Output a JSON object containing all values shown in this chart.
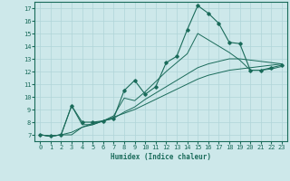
{
  "xlabel": "Humidex (Indice chaleur)",
  "bg_color": "#cde8ea",
  "grid_color": "#b0d4d8",
  "line_color": "#1a6b5a",
  "xlim": [
    -0.5,
    23.5
  ],
  "ylim": [
    6.5,
    17.5
  ],
  "xticks": [
    0,
    1,
    2,
    3,
    4,
    5,
    6,
    7,
    8,
    9,
    10,
    11,
    12,
    13,
    14,
    15,
    16,
    17,
    18,
    19,
    20,
    21,
    22,
    23
  ],
  "yticks": [
    7,
    8,
    9,
    10,
    11,
    12,
    13,
    14,
    15,
    16,
    17
  ],
  "line1_x": [
    0,
    1,
    2,
    3,
    4,
    5,
    6,
    7,
    8,
    9,
    10,
    11,
    12,
    13,
    14,
    15,
    16,
    17,
    18,
    19,
    20,
    21,
    22,
    23
  ],
  "line1_y": [
    7.0,
    6.9,
    7.0,
    9.3,
    8.0,
    8.0,
    8.1,
    8.3,
    10.5,
    11.3,
    10.2,
    10.8,
    12.7,
    13.2,
    15.3,
    17.2,
    16.6,
    15.8,
    14.3,
    14.2,
    12.1,
    12.1,
    12.3,
    12.5
  ],
  "line2_x": [
    0,
    1,
    2,
    3,
    4,
    5,
    6,
    7,
    8,
    9,
    10,
    11,
    12,
    13,
    14,
    15,
    16,
    17,
    18,
    19,
    20,
    21,
    22,
    23
  ],
  "line2_y": [
    7.0,
    6.9,
    7.0,
    7.2,
    7.6,
    7.8,
    8.1,
    8.4,
    8.7,
    9.0,
    9.4,
    9.8,
    10.2,
    10.6,
    11.0,
    11.4,
    11.7,
    11.9,
    12.1,
    12.2,
    12.3,
    12.4,
    12.5,
    12.6
  ],
  "line3_x": [
    0,
    1,
    2,
    3,
    4,
    5,
    6,
    7,
    8,
    9,
    10,
    11,
    12,
    13,
    14,
    15,
    16,
    17,
    18,
    19,
    20,
    21,
    22,
    23
  ],
  "line3_y": [
    7.0,
    6.9,
    7.0,
    7.0,
    7.6,
    7.9,
    8.1,
    8.3,
    8.8,
    9.2,
    9.8,
    10.3,
    10.8,
    11.3,
    11.8,
    12.3,
    12.6,
    12.8,
    13.0,
    13.0,
    12.9,
    12.8,
    12.7,
    12.6
  ],
  "line4_x": [
    0,
    1,
    2,
    3,
    4,
    5,
    6,
    7,
    8,
    9,
    10,
    11,
    12,
    13,
    14,
    15,
    16,
    17,
    18,
    19,
    20,
    21,
    22,
    23
  ],
  "line4_y": [
    7.0,
    6.9,
    7.0,
    9.3,
    7.8,
    7.8,
    8.1,
    8.5,
    9.9,
    9.7,
    10.4,
    11.2,
    12.0,
    12.7,
    13.4,
    15.0,
    14.5,
    14.0,
    13.5,
    12.9,
    12.1,
    12.1,
    12.2,
    12.4
  ]
}
